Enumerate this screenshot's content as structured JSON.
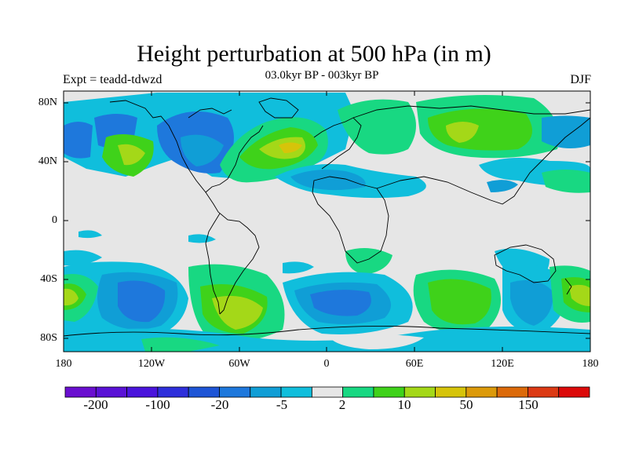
{
  "title": "Height perturbation at 500 hPa (in m)",
  "subtitle": "03.0kyr BP - 003kyr BP",
  "experiment": "Expt = teadd-tdwzd",
  "season": "DJF",
  "lat_labels": [
    "80N",
    "40N",
    "0",
    "40S",
    "80S"
  ],
  "lon_labels": [
    "180",
    "120W",
    "60W",
    "0",
    "60E",
    "120E",
    "180"
  ],
  "colorbar": {
    "colors": [
      "#6a0fd0",
      "#5a12d6",
      "#4a14dc",
      "#2e2fdb",
      "#1e55d6",
      "#1e78dc",
      "#109ed6",
      "#10bedc",
      "#e6e6e6",
      "#18d882",
      "#3fd21a",
      "#a4d818",
      "#d6c40a",
      "#dc9a0a",
      "#dc6a0a",
      "#dc3a14",
      "#dc0a0a"
    ],
    "labels": [
      "-200",
      "-100",
      "-20",
      "-5",
      "2",
      "10",
      "50",
      "150"
    ]
  },
  "colors": {
    "background": "#e6e6e6",
    "light_blue": "#10bedc",
    "mid_blue": "#109ed6",
    "blue": "#1e78dc",
    "green": "#18d882",
    "bright_green": "#3fd21a",
    "yellow_green": "#a4d818",
    "yellow": "#d6c40a"
  }
}
